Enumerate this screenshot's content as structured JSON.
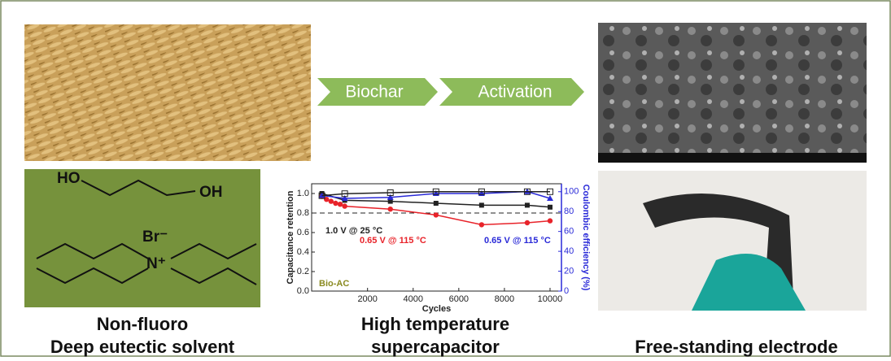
{
  "flow": {
    "steps": [
      "Biochar",
      "Activation"
    ]
  },
  "molecule": {
    "ho": "HO",
    "oh": "OH",
    "anion": "Br⁻",
    "cation": "N⁺"
  },
  "captions": {
    "left": [
      "Non-fluoro",
      "Deep eutectic solvent"
    ],
    "middle": [
      "High temperature",
      "supercapacitor"
    ],
    "right": [
      "Free-standing electrode"
    ]
  },
  "chart_data": {
    "type": "line",
    "xlabel": "Cycles",
    "ylabel": "Capacitance retention",
    "y2label": "Coulombic efficiency (%)",
    "xlim": [
      -450,
      10500
    ],
    "xticks": [
      2000,
      4000,
      6000,
      8000,
      10000
    ],
    "ylim": [
      0,
      1.1
    ],
    "yticks": [
      {
        "value": 0,
        "label": "0.0"
      },
      {
        "value": 0.2,
        "label": "0.2"
      },
      {
        "value": 0.4,
        "label": "0.4"
      },
      {
        "value": 0.6,
        "label": "0.6"
      },
      {
        "value": 0.8,
        "label": "0.8"
      },
      {
        "value": 1,
        "label": "1.0"
      }
    ],
    "y2lim": [
      0,
      108
    ],
    "y2ticks": [
      0,
      20,
      40,
      60,
      80,
      100
    ],
    "reference_line": 0.8,
    "annotations": [
      "1.0 V @ 25 °C",
      "0.65 V @ 115 °C",
      "0.65 V @ 115 °C",
      "Bio-AC"
    ],
    "series": [
      {
        "color": "#222222",
        "marker": "square",
        "x": [
          0,
          1000,
          3000,
          5000,
          7000,
          9000,
          10000
        ],
        "values": [
          1.0,
          0.93,
          0.92,
          0.9,
          0.88,
          0.88,
          0.86
        ]
      },
      {
        "color": "#e8232a",
        "marker": "circle",
        "x": [
          0,
          200,
          400,
          600,
          800,
          1000,
          3000,
          5000,
          7000,
          9000,
          10000
        ],
        "values": [
          0.97,
          0.94,
          0.92,
          0.9,
          0.89,
          0.87,
          0.84,
          0.78,
          0.68,
          0.7,
          0.72
        ]
      },
      {
        "color": "#2a2ad8",
        "marker": "triangle",
        "x": [
          0,
          1000,
          3000,
          5000,
          7000,
          9000,
          10000
        ],
        "values": [
          0.98,
          0.95,
          0.96,
          1.0,
          1.0,
          1.02,
          0.95
        ]
      },
      {
        "color": "#222222",
        "marker": "open-square",
        "axis": "y2",
        "x": [
          0,
          1000,
          3000,
          5000,
          7000,
          9000,
          10000
        ],
        "values": [
          96,
          98,
          99,
          100,
          100,
          100,
          100
        ]
      }
    ]
  }
}
